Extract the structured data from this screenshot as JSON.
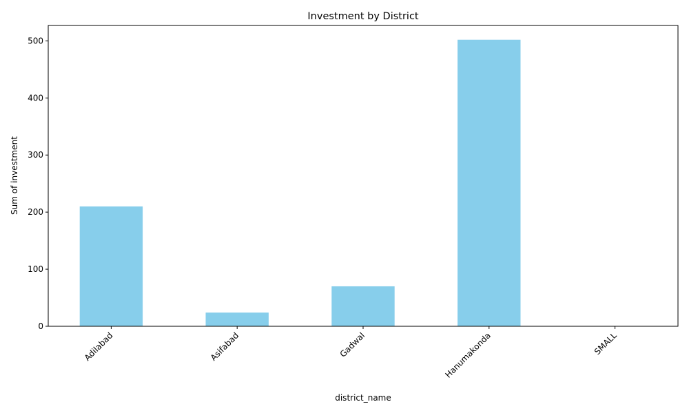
{
  "chart_data": {
    "type": "bar",
    "title": "Investment by District",
    "xlabel": "district_name",
    "ylabel": "Sum of investment",
    "categories": [
      "Adilabad",
      "Asifabad",
      "Gadwal",
      "Hanumakonda",
      "SMALL"
    ],
    "values": [
      210,
      24,
      70,
      502,
      0
    ],
    "ylim": [
      0,
      527
    ],
    "yticks": [
      0,
      100,
      200,
      300,
      400,
      500
    ],
    "grid": false,
    "bar_color": "#87ceeb"
  }
}
